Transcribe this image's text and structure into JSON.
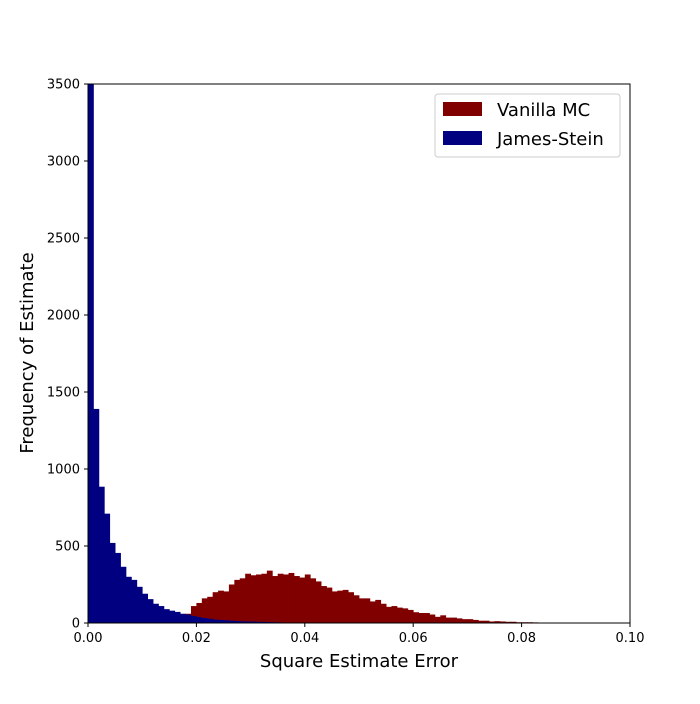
{
  "colors": {
    "vanilla": "#800000",
    "james_stein": "#000080",
    "axes": "#000000",
    "background": "#ffffff"
  },
  "chart_data": {
    "type": "bar",
    "title": "",
    "xlabel": "Square Estimate Error",
    "ylabel": "Frequency of Estimate",
    "xlim": [
      0,
      0.1
    ],
    "ylim": [
      0,
      3500
    ],
    "xticks": [
      "0.00",
      "0.02",
      "0.04",
      "0.06",
      "0.08",
      "0.10"
    ],
    "yticks": [
      "0",
      "500",
      "1000",
      "1500",
      "2000",
      "2500",
      "3000",
      "3500"
    ],
    "grid": false,
    "legend_position": "top-right",
    "bin_width": 0.001,
    "series": [
      {
        "name": "Vanilla MC",
        "color": "#800000",
        "bin_start": 0.018,
        "values": [
          60,
          110,
          130,
          160,
          170,
          200,
          210,
          205,
          250,
          280,
          290,
          320,
          310,
          315,
          320,
          340,
          305,
          320,
          315,
          325,
          305,
          295,
          315,
          290,
          270,
          240,
          230,
          205,
          210,
          215,
          200,
          180,
          160,
          160,
          140,
          150,
          125,
          105,
          110,
          100,
          95,
          85,
          70,
          65,
          65,
          55,
          40,
          50,
          35,
          35,
          30,
          25,
          25,
          20,
          15,
          15,
          10,
          12,
          10,
          8,
          8,
          5,
          5,
          5,
          4,
          3,
          3,
          3,
          2,
          2
        ]
      },
      {
        "name": "James-Stein",
        "color": "#000080",
        "bin_start": 0,
        "values": [
          3500,
          1390,
          885,
          710,
          520,
          455,
          365,
          300,
          280,
          235,
          190,
          155,
          125,
          110,
          90,
          80,
          72,
          60,
          55,
          45,
          38,
          32,
          28,
          22,
          20,
          18,
          15,
          13,
          11,
          10,
          9,
          8,
          7,
          6,
          5,
          4,
          3,
          3,
          2,
          2,
          1
        ]
      }
    ]
  }
}
